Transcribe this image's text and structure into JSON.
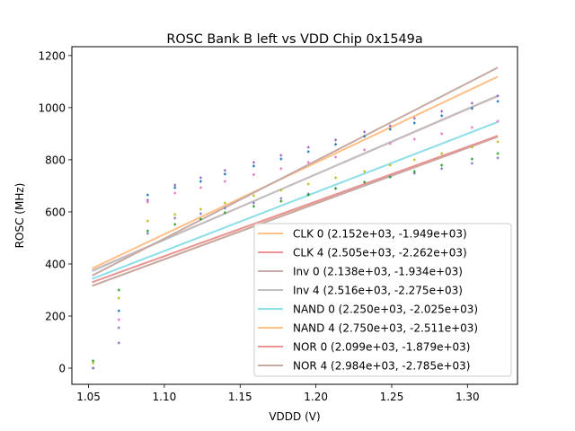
{
  "chart_data": {
    "type": "scatter",
    "title": "ROSC Bank B left vs VDD Chip 0x1549a",
    "xlabel": "VDDD (V)",
    "ylabel": "ROSC (MHz)",
    "xlim": [
      1.039,
      1.333
    ],
    "ylim": [
      -62,
      1234
    ],
    "xticks": [
      1.05,
      1.1,
      1.15,
      1.2,
      1.25,
      1.3
    ],
    "xtick_labels": [
      "1.05",
      "1.10",
      "1.15",
      "1.20",
      "1.25",
      "1.30"
    ],
    "yticks": [
      0,
      200,
      400,
      600,
      800,
      1000,
      1200
    ],
    "ytick_labels": [
      "0",
      "200",
      "400",
      "600",
      "800",
      "1000",
      "1200"
    ],
    "grid": false,
    "legend_position": "lower-right",
    "fit_x_range": [
      1.0524,
      1.32
    ],
    "fits": [
      {
        "name": "CLK 0",
        "label": "CLK 0 (2.152e+03, -1.949e+03)",
        "slope": 2152,
        "intercept": -1949,
        "color": "#ffbf86"
      },
      {
        "name": "CLK 4",
        "label": "CLK 4 (2.505e+03, -2.262e+03)",
        "slope": 2505,
        "intercept": -2262,
        "color": "#ea9393"
      },
      {
        "name": "Inv 0",
        "label": "Inv 0 (2.138e+03, -1.934e+03)",
        "slope": 2138,
        "intercept": -1934,
        "color": "#c5aaa5"
      },
      {
        "name": "Inv 4",
        "label": "Inv 4 (2.516e+03, -2.275e+03)",
        "slope": 2516,
        "intercept": -2275,
        "color": "#bfbfbf"
      },
      {
        "name": "NAND 0",
        "label": "NAND 0 (2.250e+03, -2.025e+03)",
        "slope": 2250,
        "intercept": -2025,
        "color": "#8bdee7"
      },
      {
        "name": "NAND 4",
        "label": "NAND 4 (2.750e+03, -2.511e+03)",
        "slope": 2750,
        "intercept": -2511,
        "color": "#ffbf86"
      },
      {
        "name": "NOR 0",
        "label": "NOR 0 (2.099e+03, -1.879e+03)",
        "slope": 2099,
        "intercept": -1879,
        "color": "#ea9393"
      },
      {
        "name": "NOR 4",
        "label": "NOR 4 (2.984e+03, -2.785e+03)",
        "slope": 2984,
        "intercept": -2785,
        "color": "#c5aaa5"
      }
    ],
    "x": [
      1.053,
      1.07,
      1.089,
      1.107,
      1.124,
      1.14,
      1.159,
      1.177,
      1.195,
      1.213,
      1.232,
      1.249,
      1.265,
      1.283,
      1.303,
      1.32
    ],
    "series": [
      {
        "name": "points-purple",
        "color": "#9467bd",
        "values": [
          0,
          97,
          645,
          703,
          731,
          759,
          790,
          817,
          848,
          876,
          907,
          930,
          959,
          986,
          1017,
          1045
        ]
      },
      {
        "name": "points-blue",
        "color": "#1f77b4",
        "values": [
          0,
          220,
          665,
          693,
          717,
          745,
          776,
          803,
          831,
          859,
          890,
          917,
          941,
          969,
          997,
          1024
        ]
      },
      {
        "name": "points-pink",
        "color": "#e377c2",
        "values": [
          0,
          186,
          638,
          672,
          693,
          717,
          743,
          766,
          790,
          810,
          838,
          862,
          879,
          900,
          924,
          948
        ]
      },
      {
        "name": "points-olive",
        "color": "#bcbd22",
        "values": [
          20,
          269,
          565,
          590,
          610,
          634,
          662,
          683,
          707,
          731,
          755,
          779,
          800,
          824,
          848,
          869
        ]
      },
      {
        "name": "points-steel",
        "color": "#7f7fbf",
        "values": [
          0,
          155,
          517,
          576,
          593,
          614,
          634,
          652,
          669,
          690,
          714,
          734,
          748,
          766,
          786,
          807
        ]
      },
      {
        "name": "points-green",
        "color": "#2ca02c",
        "values": [
          28,
          300,
          527,
          552,
          572,
          597,
          621,
          641,
          665,
          690,
          714,
          734,
          755,
          779,
          803,
          824
        ]
      }
    ]
  }
}
